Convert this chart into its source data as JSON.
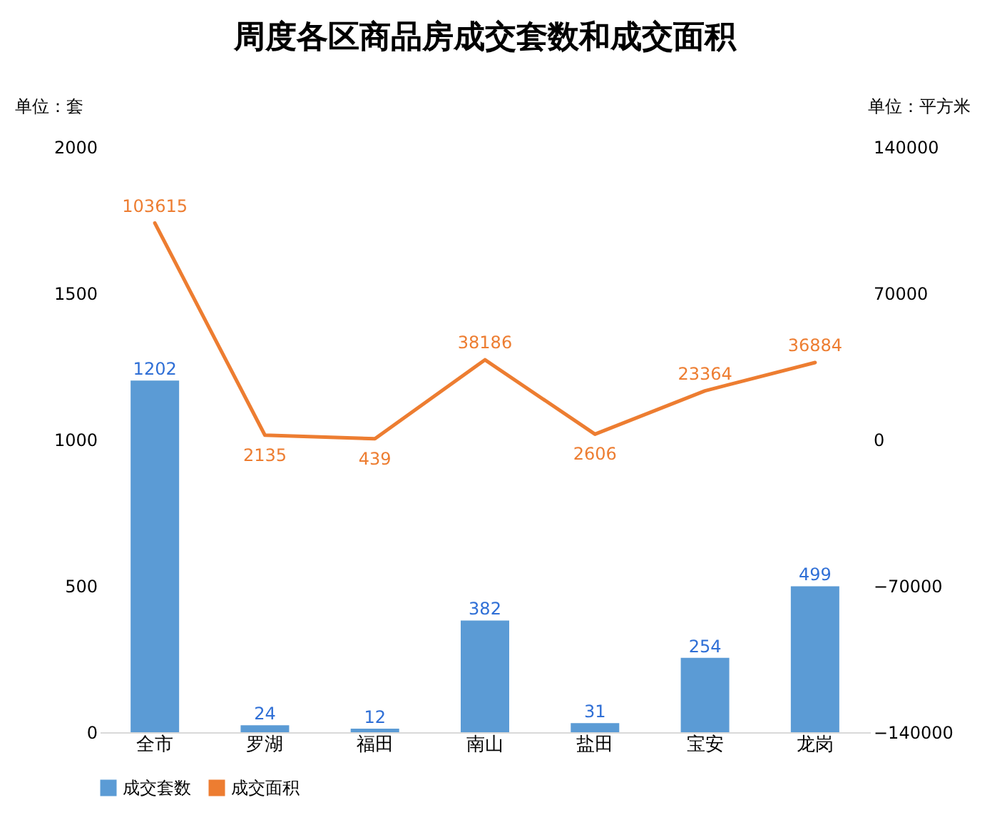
{
  "chart_data": {
    "type": "bar",
    "title": "周度各区商品房成交套数和成交面积",
    "ylabel": "单位：套",
    "y2label": "单位：平方米",
    "categories": [
      "全市",
      "罗湖",
      "福田",
      "南山",
      "盐田",
      "宝安",
      "龙岗"
    ],
    "series": [
      {
        "name": "成交套数",
        "color": "#5b9bd5",
        "values": [
          1202,
          24,
          12,
          382,
          31,
          254,
          499
        ]
      },
      {
        "name": "成交面积",
        "type": "line",
        "axis": "y2",
        "color": "#ed7d31",
        "values": [
          103615,
          2135,
          439,
          38186,
          2606,
          23364,
          36884
        ]
      }
    ],
    "ylim": [
      0,
      2000
    ],
    "yticks": [
      0,
      500,
      1000,
      1500,
      2000
    ],
    "y2lim": [
      -140000,
      140000
    ],
    "y2ticks": [
      -140000,
      -70000,
      0,
      70000,
      140000
    ],
    "data_labels": true,
    "legend": "bottom",
    "grid": false,
    "marker": "none",
    "line_style": "solid"
  }
}
